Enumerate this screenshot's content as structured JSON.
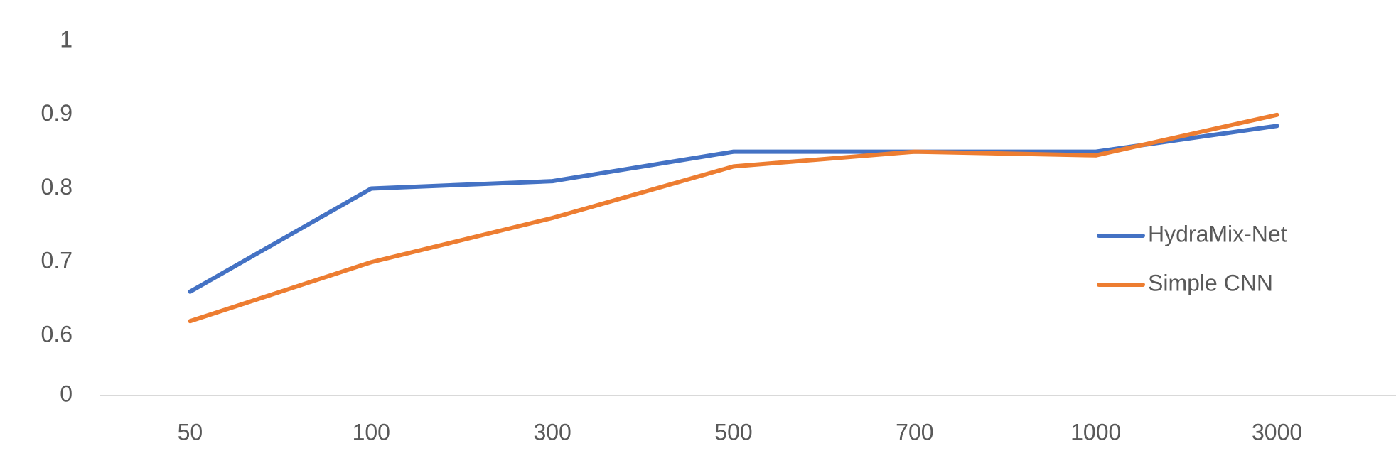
{
  "chart_data": {
    "type": "line",
    "categories": [
      "50",
      "100",
      "300",
      "500",
      "700",
      "1000",
      "3000"
    ],
    "series": [
      {
        "name": "HydraMix-Net",
        "color": "#4472c4",
        "values": [
          0.66,
          0.8,
          0.81,
          0.85,
          0.85,
          0.85,
          0.885
        ]
      },
      {
        "name": "Simple CNN",
        "color": "#ed7d31",
        "values": [
          0.62,
          0.7,
          0.76,
          0.83,
          0.85,
          0.845,
          0.9
        ]
      }
    ],
    "ylim": [
      0,
      1
    ],
    "yticks": [
      0,
      0.6,
      0.7,
      0.8,
      0.9,
      1
    ],
    "axis_break": [
      0,
      0.6
    ],
    "grid": false,
    "legend": "right"
  }
}
